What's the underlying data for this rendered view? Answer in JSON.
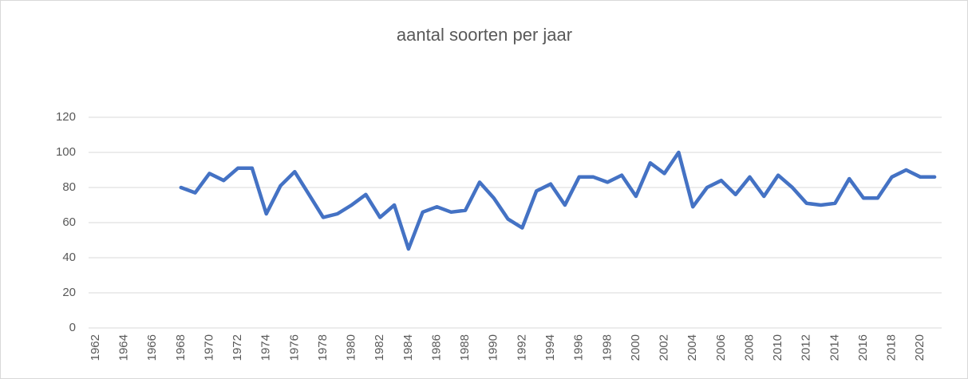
{
  "chart_data": {
    "type": "line",
    "title": "aantal soorten per jaar",
    "categories": [
      "1962",
      null,
      "1964",
      null,
      "1966",
      null,
      "1968",
      null,
      "1970",
      null,
      "1972",
      null,
      "1974",
      null,
      "1976",
      null,
      "1978",
      null,
      "1980",
      null,
      "1982",
      null,
      "1984",
      null,
      "1986",
      null,
      "1988",
      null,
      "1990",
      null,
      "1992",
      null,
      "1994",
      null,
      "1996",
      null,
      "1998",
      null,
      "2000",
      null,
      "2002",
      null,
      "2004",
      null,
      "2006",
      null,
      "2008",
      null,
      "2010",
      null,
      "2012",
      null,
      "2014",
      null,
      "2016",
      null,
      "2018",
      null,
      "2020",
      null
    ],
    "series": [
      {
        "name": "aantal soorten",
        "color": "#4472c4",
        "values": [
          null,
          null,
          null,
          null,
          null,
          null,
          80,
          77,
          88,
          84,
          91,
          91,
          65,
          81,
          89,
          76,
          63,
          65,
          70,
          76,
          63,
          70,
          45,
          66,
          69,
          66,
          67,
          83,
          74,
          62,
          57,
          78,
          82,
          70,
          86,
          86,
          83,
          87,
          75,
          94,
          88,
          100,
          69,
          80,
          84,
          76,
          86,
          75,
          87,
          80,
          71,
          70,
          71,
          85,
          74,
          74,
          86,
          90,
          86,
          86
        ]
      }
    ],
    "ylim": [
      0,
      120
    ],
    "yticks": [
      0,
      20,
      40,
      60,
      80,
      100,
      120
    ],
    "grid": true
  }
}
